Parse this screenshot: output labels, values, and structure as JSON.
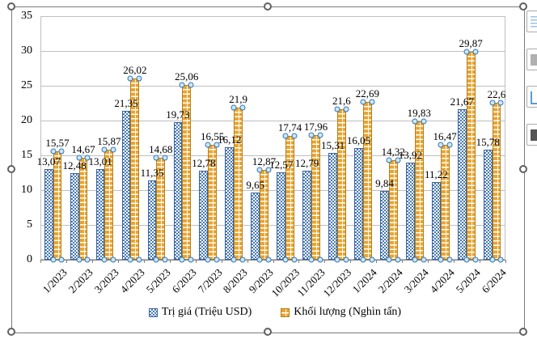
{
  "chart_data": {
    "type": "bar",
    "title": "",
    "xlabel": "",
    "ylabel": "",
    "categories": [
      "1/2023",
      "2/2023",
      "3/2023",
      "4/2023",
      "5/2023",
      "6/2023",
      "7/2023",
      "8/2023",
      "9/2023",
      "10/2023",
      "11/2023",
      "12/2023",
      "1/2024",
      "2/2024",
      "3/2024",
      "4/2024",
      "5/2024",
      "6/2024"
    ],
    "series": [
      {
        "name": "Trị giá (Triệu USD)",
        "values": [
          13.07,
          12.48,
          13.01,
          21.35,
          11.35,
          19.73,
          12.78,
          16.12,
          9.65,
          12.57,
          12.79,
          15.31,
          16.05,
          9.84,
          13.92,
          11.22,
          21.67,
          15.78
        ],
        "labels": [
          "13,07",
          "12,48",
          "13,01",
          "21,35",
          "11,35",
          "19,73",
          "12,78",
          "16,12",
          "9,65",
          "12,57",
          "12,79",
          "15,31",
          "16,05",
          "9,84",
          "13,92",
          "11,22",
          "21,67",
          "15,78"
        ],
        "pattern": "checker",
        "color": "#4a7ab5"
      },
      {
        "name": "Khối lượng (Nghìn tấn)",
        "values": [
          15.57,
          14.67,
          15.87,
          26.02,
          14.68,
          25.06,
          16.55,
          21.9,
          12.87,
          17.74,
          17.96,
          21.6,
          22.69,
          14.32,
          19.83,
          16.47,
          29.87,
          22.6
        ],
        "labels": [
          "15,57",
          "14,67",
          "15,87",
          "26,02",
          "14,68",
          "25,06",
          "16,55",
          "21,9",
          "12,87",
          "17,74",
          "17,96",
          "21,6",
          "22,69",
          "14,32",
          "19,83",
          "16,47",
          "29,87",
          "22,6"
        ],
        "pattern": "brick",
        "color": "#eaa42f",
        "selected": true
      }
    ],
    "ylim": [
      0,
      35
    ],
    "yticks": [
      "0",
      "5",
      "10",
      "15",
      "20",
      "25",
      "30",
      "35"
    ],
    "grid": true,
    "legend_position": "bottom",
    "data_labels": true
  },
  "selection": {
    "object_selected": true,
    "handle_count": 8,
    "selected_series": "Khối lượng (Nghìn tấn)"
  },
  "side_buttons": [
    {
      "icon": "layout-options-icon"
    },
    {
      "icon": "chart-elements-icon"
    },
    {
      "icon": "chart-styles-icon"
    },
    {
      "icon": "chart-filters-icon"
    }
  ],
  "colors": {
    "series1": "#4a7ab5",
    "series2": "#eaa42f",
    "gridline": "#bfbfbf",
    "axis_line": "#7f7f7f",
    "point_handle_fill": "#cfe6f7",
    "point_handle_border": "#2e75b6",
    "text": "#000000"
  }
}
